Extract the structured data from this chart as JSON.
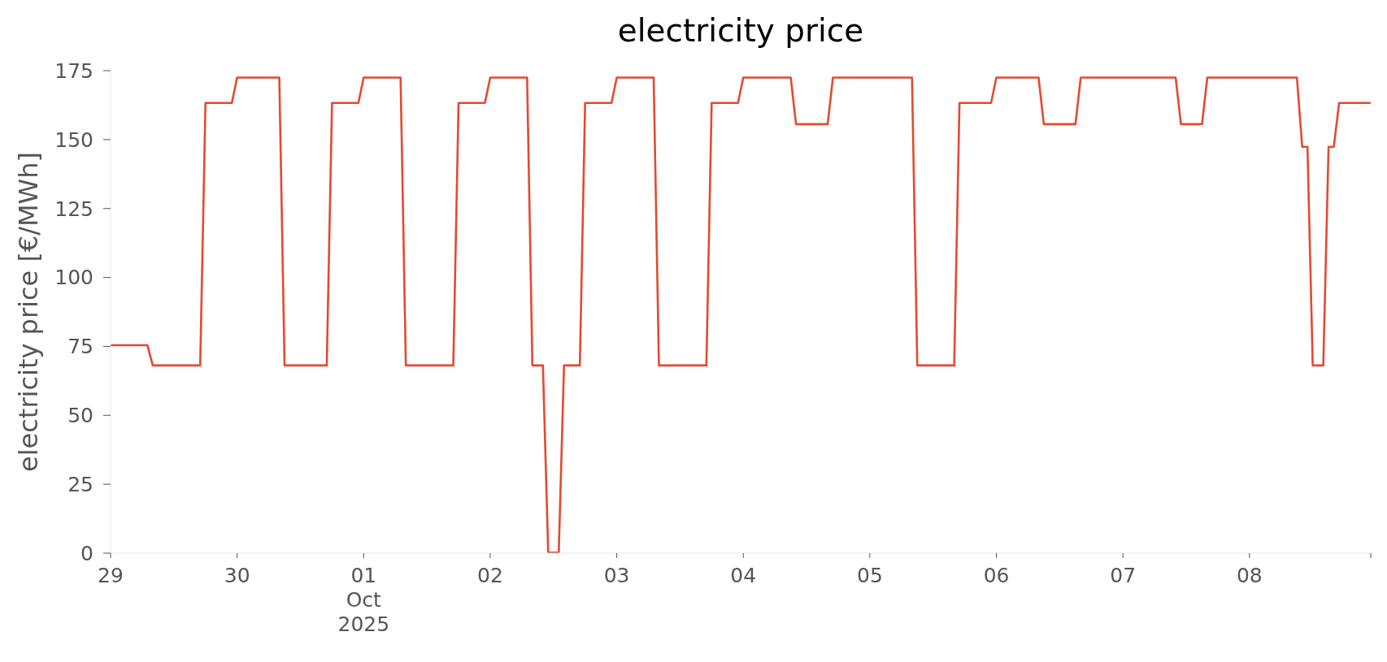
{
  "chart_data": {
    "type": "line",
    "title": "electricity price",
    "ylabel": "electricity price [€/MWh]",
    "x": [
      "2025-09-29T00:00",
      "2025-09-29T07:00",
      "2025-09-29T08:00",
      "2025-09-29T17:00",
      "2025-09-29T18:00",
      "2025-09-29T23:00",
      "2025-09-30T00:00",
      "2025-09-30T08:00",
      "2025-09-30T09:00",
      "2025-09-30T17:00",
      "2025-09-30T18:00",
      "2025-09-30T23:00",
      "2025-10-01T00:00",
      "2025-10-01T07:00",
      "2025-10-01T08:00",
      "2025-10-01T17:00",
      "2025-10-01T18:00",
      "2025-10-01T23:00",
      "2025-10-02T00:00",
      "2025-10-02T07:00",
      "2025-10-02T08:00",
      "2025-10-02T10:00",
      "2025-10-02T11:00",
      "2025-10-02T13:00",
      "2025-10-02T14:00",
      "2025-10-02T17:00",
      "2025-10-02T18:00",
      "2025-10-02T23:00",
      "2025-10-03T00:00",
      "2025-10-03T07:00",
      "2025-10-03T08:00",
      "2025-10-03T17:00",
      "2025-10-03T18:00",
      "2025-10-03T23:00",
      "2025-10-04T00:00",
      "2025-10-04T09:00",
      "2025-10-04T10:00",
      "2025-10-04T16:00",
      "2025-10-04T17:00",
      "2025-10-05T08:00",
      "2025-10-05T09:00",
      "2025-10-05T16:00",
      "2025-10-05T17:00",
      "2025-10-05T23:00",
      "2025-10-06T00:00",
      "2025-10-06T08:00",
      "2025-10-06T09:00",
      "2025-10-06T15:00",
      "2025-10-06T16:00",
      "2025-10-07T10:00",
      "2025-10-07T11:00",
      "2025-10-07T15:00",
      "2025-10-07T16:00",
      "2025-10-08T09:00",
      "2025-10-08T10:00",
      "2025-10-08T11:00",
      "2025-10-08T12:00",
      "2025-10-08T14:00",
      "2025-10-08T15:00",
      "2025-10-08T16:00",
      "2025-10-08T17:00",
      "2025-10-08T23:00"
    ],
    "values": [
      75.4,
      75.4,
      68.1,
      68.1,
      163.3,
      163.3,
      172.5,
      172.5,
      68.1,
      68.1,
      163.3,
      163.3,
      172.5,
      172.5,
      68.1,
      68.1,
      163.3,
      163.3,
      172.5,
      172.5,
      68.1,
      68.1,
      0.2,
      0.2,
      68.1,
      68.1,
      163.3,
      163.3,
      172.5,
      172.5,
      68.1,
      68.1,
      163.3,
      163.3,
      172.5,
      172.5,
      155.6,
      155.6,
      172.5,
      172.5,
      68.1,
      68.1,
      163.3,
      163.3,
      172.5,
      172.5,
      155.6,
      155.6,
      172.5,
      172.5,
      155.6,
      155.6,
      172.5,
      172.5,
      147.4,
      147.4,
      68.1,
      68.1,
      147.4,
      147.4,
      163.3,
      163.3
    ],
    "color": "#e24a33",
    "line_style": "solid",
    "xlim": [
      "2025-09-29T00:00",
      "2025-10-08T23:00"
    ],
    "xticks": [
      {
        "value": "2025-09-29",
        "label": "29"
      },
      {
        "value": "2025-09-30",
        "label": "30"
      },
      {
        "value": "2025-10-01",
        "label": "01\nOct\n2025"
      },
      {
        "value": "2025-10-02",
        "label": "02"
      },
      {
        "value": "2025-10-03",
        "label": "03"
      },
      {
        "value": "2025-10-04",
        "label": "04"
      },
      {
        "value": "2025-10-05",
        "label": "05"
      },
      {
        "value": "2025-10-06",
        "label": "06"
      },
      {
        "value": "2025-10-07",
        "label": "07"
      },
      {
        "value": "2025-10-08",
        "label": "08"
      },
      {
        "value": "2025-10-08T23:00",
        "label": null
      }
    ],
    "ylim": [
      0,
      175
    ],
    "yticks": [
      0,
      25,
      50,
      75,
      100,
      125,
      150,
      175
    ]
  }
}
